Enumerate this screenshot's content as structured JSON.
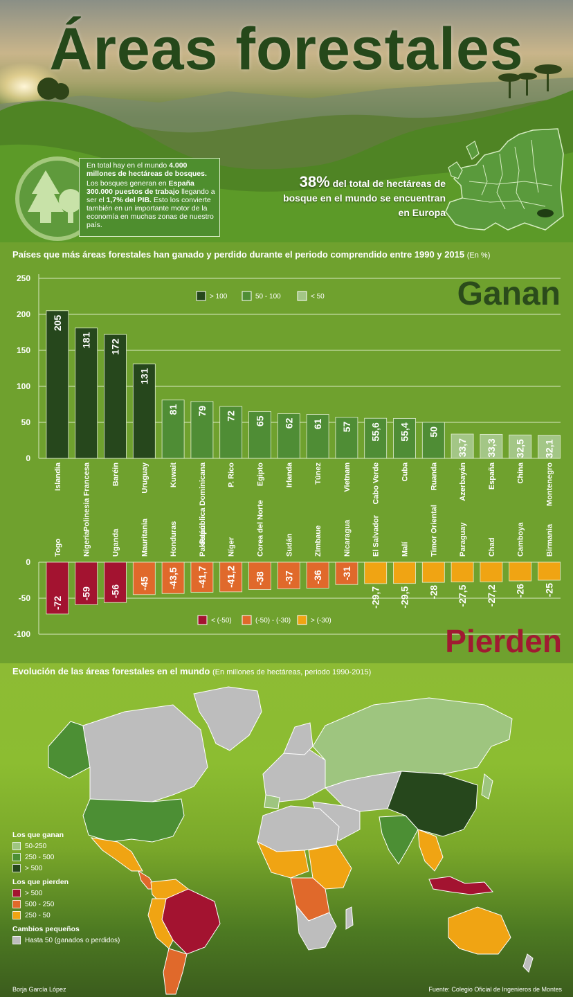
{
  "header": {
    "title": "Áreas forestales",
    "info_line1_a": "En total hay en el mundo ",
    "info_line1_b": "4.000 millones de hectáreas de bosques.",
    "info_line2_a": "Los bosques generan en ",
    "info_line2_b": "España 300.000 puestos de trabajo",
    "info_line2_c": " llegando a ser el ",
    "info_line2_d": "1,7% del PIB.",
    "info_line2_e": " Esto los convierte también en un importante motor de la economía en muchas zonas de nuestro país.",
    "europe_pct": "38%",
    "europe_text": " del total de hectáreas de bosque en el mundo se encuentran en Europa"
  },
  "chart_section": {
    "heading": "Países que más áreas forestales han ganado y perdido durante el periodo comprendido entre 1990 y 2015",
    "heading_unit": "(En %)",
    "gain_title": "Ganan",
    "loss_title": "Pierden"
  },
  "chart_data": [
    {
      "type": "bar",
      "title": "Ganan",
      "categories": [
        "Islandia",
        "Polinesia Francesa",
        "Baréin",
        "Uruguay",
        "Kuwait",
        "República Dominicana",
        "P. Rico",
        "Egipto",
        "Irlanda",
        "Túnez",
        "Vietnam",
        "Cabo Verde",
        "Cuba",
        "Ruanda",
        "Azerbayán",
        "España",
        "China",
        "Montenegro"
      ],
      "values": [
        205,
        181,
        172,
        131,
        81,
        79,
        72,
        65,
        62,
        61,
        57,
        55.6,
        55.4,
        50,
        33.7,
        33.3,
        32.5,
        32.1
      ],
      "value_labels": [
        "205",
        "181",
        "172",
        "131",
        "81",
        "79",
        "72",
        "65",
        "62",
        "61",
        "57",
        "55,6",
        "55,4",
        "50",
        "33,7",
        "33,3",
        "32,5",
        "32,1"
      ],
      "ylim": [
        0,
        250
      ],
      "yticks": [
        0,
        50,
        100,
        150,
        200,
        250
      ],
      "grid": true,
      "legend": [
        {
          "label": "> 100",
          "color": "#26471c"
        },
        {
          "label": "50 - 100",
          "color": "#4f8d35"
        },
        {
          "label": "< 50",
          "color": "#a3c686"
        }
      ],
      "legend_position": "top"
    },
    {
      "type": "bar",
      "title": "Pierden",
      "categories": [
        "Togo",
        "Nigeria",
        "Uganda",
        "Mauritania",
        "Honduras",
        "Pakistán",
        "Níger",
        "Corea del Norte",
        "Sudán",
        "Zimbaue",
        "Nicaragua",
        "El Salvador",
        "Malí",
        "Timor Oriental",
        "Paraguay",
        "Chad",
        "Camboya",
        "Birmania"
      ],
      "values": [
        -72,
        -59,
        -56,
        -45,
        -43.5,
        -41.7,
        -41.2,
        -38,
        -37,
        -36,
        -31,
        -29.7,
        -29.5,
        -28,
        -27.5,
        -27.2,
        -26,
        -25
      ],
      "value_labels": [
        "-72",
        "-59",
        "-56",
        "-45",
        "-43,5",
        "-41,7",
        "-41,2",
        "-38",
        "-37",
        "-36",
        "-31",
        "-29,7",
        "-29,5",
        "-28",
        "-27,5",
        "-27,2",
        "-26",
        "-25"
      ],
      "ylim": [
        -100,
        0
      ],
      "yticks": [
        0,
        -50,
        -100
      ],
      "grid": true,
      "legend": [
        {
          "label": "< (-50)",
          "color": "#a31330"
        },
        {
          "label": "(-50) - (-30)",
          "color": "#e0692b"
        },
        {
          "label": "> (-30)",
          "color": "#f0a413"
        }
      ],
      "legend_position": "bottom"
    }
  ],
  "map_section": {
    "heading": "Evolución de las áreas forestales en el mundo",
    "heading_unit": "(En millones de hectáreas, periodo 1990-2015)",
    "legend": [
      {
        "group": "Los que ganan",
        "items": [
          {
            "label": "50-250",
            "color": "#9ec57f"
          },
          {
            "label": "250 - 500",
            "color": "#4c8f34"
          },
          {
            "label": "> 500",
            "color": "#26471c"
          }
        ]
      },
      {
        "group": "Los que pierden",
        "items": [
          {
            "label": "> 500",
            "color": "#a31330"
          },
          {
            "label": "500 - 250",
            "color": "#e0692b"
          },
          {
            "label": "250 - 50",
            "color": "#f0a413"
          }
        ]
      },
      {
        "group": "Cambios pequeños",
        "items": [
          {
            "label": "Hasta 50 (ganados o perdidos)",
            "color": "#bdbdbd"
          }
        ]
      }
    ],
    "author": "Borja García López",
    "source": "Fuente: Colegio Oficial de Ingenieros de Montes"
  }
}
